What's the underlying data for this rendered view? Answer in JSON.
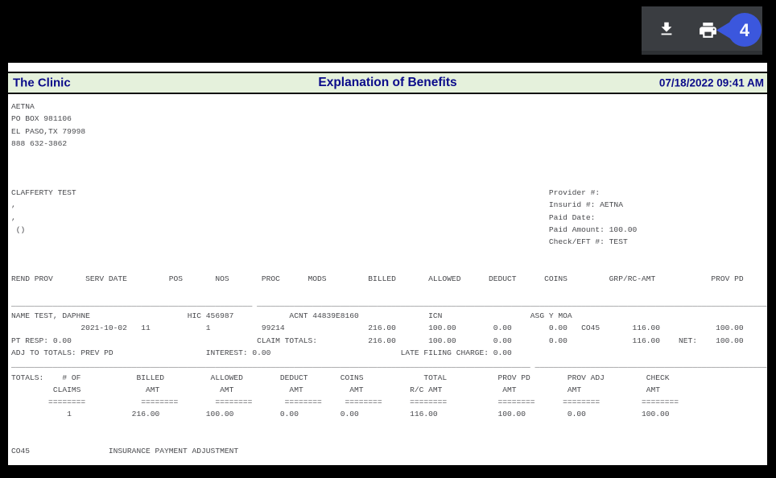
{
  "toolbar": {
    "background": "#3a3d41",
    "buttons": [
      {
        "icon": "download-icon"
      },
      {
        "icon": "print-icon"
      }
    ],
    "annotation": {
      "label": "4",
      "color": "#3b57dd"
    }
  },
  "document": {
    "header": {
      "clinic": "The Clinic",
      "title": "Explanation of Benefits",
      "datetime": "07/18/2022 09:41 AM",
      "bar_color": "#e5f1dc",
      "text_color": "#0b0b8a"
    },
    "report": {
      "text_color": "#48494d",
      "lines": [
        {
          "s": [
            [
              0,
              "AETNA"
            ]
          ]
        },
        {
          "s": [
            [
              0,
              "PO BOX 981106"
            ]
          ]
        },
        {
          "s": [
            [
              0,
              "EL PASO,TX 79998"
            ]
          ]
        },
        {
          "s": [
            [
              0,
              "888 632-3862"
            ]
          ]
        },
        {
          "s": []
        },
        {
          "s": []
        },
        {
          "s": []
        },
        {
          "s": [
            [
              0,
              "CLAFFERTY TEST"
            ],
            [
              116,
              "Provider #:"
            ]
          ]
        },
        {
          "s": [
            [
              0,
              ","
            ],
            [
              116,
              "Insurid #: AETNA"
            ]
          ]
        },
        {
          "s": [
            [
              0,
              ","
            ],
            [
              116,
              "Paid Date:"
            ]
          ]
        },
        {
          "s": [
            [
              1,
              "()"
            ],
            [
              116,
              "Paid Amount: 100.00"
            ]
          ]
        },
        {
          "s": [
            [
              116,
              "Check/EFT #: TEST"
            ]
          ]
        },
        {
          "s": []
        },
        {
          "s": []
        },
        {
          "s": [
            [
              0,
              "REND PROV"
            ],
            [
              16,
              "SERV DATE"
            ],
            [
              34,
              "POS"
            ],
            [
              44,
              "NOS"
            ],
            [
              54,
              "PROC"
            ],
            [
              64,
              "MODS"
            ],
            [
              77,
              "BILLED"
            ],
            [
              90,
              "ALLOWED"
            ],
            [
              103,
              "DEDUCT"
            ],
            [
              115,
              "COINS"
            ],
            [
              129,
              "GRP/RC-AMT"
            ],
            [
              151,
              "PROV PD"
            ]
          ]
        },
        {
          "s": []
        },
        {
          "r": [
            [
              0,
              52
            ],
            [
              53,
              110
            ]
          ]
        },
        {
          "s": [
            [
              0,
              "NAME TEST, DAPHNE"
            ],
            [
              38,
              "HIC 456987"
            ],
            [
              60,
              "ACNT 44839E8160"
            ],
            [
              90,
              "ICN"
            ],
            [
              112,
              "ASG Y MOA"
            ]
          ]
        },
        {
          "s": [
            [
              15,
              "2021-10-02"
            ],
            [
              28,
              "11"
            ],
            [
              42,
              "1"
            ],
            [
              54,
              "99214"
            ],
            [
              77,
              "216.00"
            ],
            [
              90,
              "100.00"
            ],
            [
              104,
              "0.00"
            ],
            [
              116,
              "0.00"
            ],
            [
              123,
              "CO45"
            ],
            [
              134,
              "116.00"
            ],
            [
              152,
              "100.00"
            ]
          ]
        },
        {
          "s": [
            [
              0,
              "PT RESP: 0.00"
            ],
            [
              53,
              "CLAIM TOTALS:"
            ],
            [
              77,
              "216.00"
            ],
            [
              90,
              "100.00"
            ],
            [
              104,
              "0.00"
            ],
            [
              116,
              "0.00"
            ],
            [
              134,
              "116.00"
            ],
            [
              144,
              "NET:"
            ],
            [
              152,
              "100.00"
            ]
          ]
        },
        {
          "s": [
            [
              0,
              "ADJ TO TOTALS: PREV PD"
            ],
            [
              42,
              "INTEREST: 0.00"
            ],
            [
              84,
              "LATE FILING CHARGE: 0.00"
            ]
          ]
        },
        {
          "r": [
            [
              0,
              112
            ],
            [
              113,
              50
            ]
          ]
        },
        {
          "s": [
            [
              0,
              "TOTALS:"
            ],
            [
              11,
              "# OF"
            ],
            [
              27,
              "BILLED"
            ],
            [
              43,
              "ALLOWED"
            ],
            [
              58,
              "DEDUCT"
            ],
            [
              71,
              "COINS"
            ],
            [
              89,
              "TOTAL"
            ],
            [
              105,
              "PROV PD"
            ],
            [
              120,
              "PROV ADJ"
            ],
            [
              137,
              "CHECK"
            ]
          ]
        },
        {
          "s": [
            [
              9,
              "CLAIMS"
            ],
            [
              29,
              "AMT"
            ],
            [
              45,
              "AMT"
            ],
            [
              60,
              "AMT"
            ],
            [
              73,
              "AMT"
            ],
            [
              86,
              "R/C AMT"
            ],
            [
              106,
              "AMT"
            ],
            [
              120,
              "AMT"
            ],
            [
              137,
              "AMT"
            ]
          ]
        },
        {
          "s": [
            [
              8,
              "========"
            ],
            [
              28,
              "========"
            ],
            [
              44,
              "========"
            ],
            [
              59,
              "========"
            ],
            [
              72,
              "========"
            ],
            [
              86,
              "========"
            ],
            [
              105,
              "========"
            ],
            [
              119,
              "========"
            ],
            [
              136,
              "========"
            ]
          ]
        },
        {
          "s": [
            [
              12,
              "1"
            ],
            [
              26,
              "216.00"
            ],
            [
              42,
              "100.00"
            ],
            [
              58,
              "0.00"
            ],
            [
              71,
              "0.00"
            ],
            [
              86,
              "116.00"
            ],
            [
              105,
              "100.00"
            ],
            [
              120,
              "0.00"
            ],
            [
              136,
              "100.00"
            ]
          ]
        },
        {
          "s": []
        },
        {
          "s": []
        },
        {
          "s": [
            [
              0,
              "CO45"
            ],
            [
              21,
              "INSURANCE PAYMENT ADJUSTMENT"
            ]
          ]
        }
      ]
    }
  }
}
